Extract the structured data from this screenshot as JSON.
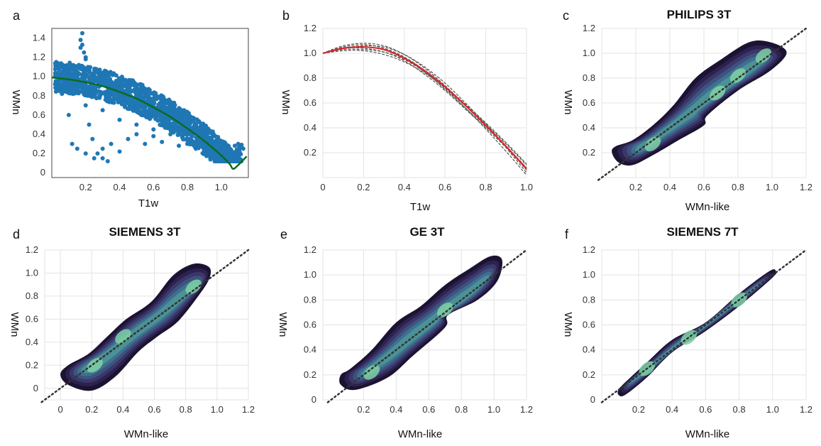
{
  "chart_data": [
    {
      "type": "scatter",
      "panel": "a",
      "title": "",
      "xlabel": "T1w",
      "ylabel": "WMn",
      "xticks": [
        "0.2",
        "0.4",
        "0.6",
        "0.8",
        "1.0"
      ],
      "yticks": [
        "0",
        "0.2",
        "0.4",
        "0.6",
        "0.8",
        "1.0",
        "1.2",
        "1.4"
      ],
      "xlim": [
        0.0,
        1.16
      ],
      "ylim": [
        -0.05,
        1.5
      ],
      "grid": false,
      "scatter_color": "#1f77b4",
      "fit_color": "#0b6b1e",
      "series": [
        {
          "type": "scatter",
          "x": [
            0.02,
            0.03,
            0.04,
            0.05,
            0.06,
            0.06,
            0.08,
            0.09,
            0.1,
            0.12,
            0.13,
            0.14,
            0.15,
            0.16,
            0.17,
            0.18,
            0.2,
            0.21,
            0.23,
            0.25,
            0.26,
            0.28,
            0.3,
            0.32,
            0.34,
            0.36,
            0.38,
            0.4,
            0.42,
            0.44,
            0.46,
            0.48,
            0.5,
            0.52,
            0.55,
            0.58,
            0.6,
            0.62,
            0.65,
            0.68,
            0.7,
            0.72,
            0.75,
            0.78,
            0.8,
            0.82,
            0.85,
            0.88,
            0.9,
            0.92,
            0.95,
            0.98,
            1.0,
            1.02,
            1.05,
            1.08,
            1.1,
            1.12,
            1.13,
            0.17,
            0.18,
            0.19,
            0.2,
            0.22,
            0.24,
            0.27,
            0.3,
            0.33,
            0.12,
            0.15,
            0.2,
            0.25,
            0.3,
            0.35,
            0.4,
            0.45,
            0.5,
            0.55,
            0.6,
            0.65,
            0.7,
            0.75,
            0.8,
            0.85,
            0.9,
            0.95,
            1.0,
            0.1,
            0.2,
            0.3,
            0.4,
            0.5,
            0.6,
            0.7,
            0.8,
            0.9
          ],
          "y": [
            0.92,
            0.85,
            0.98,
            0.9,
            0.82,
            1.0,
            0.95,
            0.88,
            1.02,
            0.97,
            0.9,
            1.05,
            0.99,
            1.12,
            1.3,
            1.45,
            1.2,
            1.08,
            1.0,
            0.95,
            1.05,
            0.92,
            0.98,
            0.9,
            0.88,
            0.85,
            0.95,
            0.82,
            0.9,
            0.8,
            0.78,
            0.85,
            0.75,
            0.72,
            0.7,
            0.65,
            0.68,
            0.6,
            0.58,
            0.55,
            0.5,
            0.52,
            0.45,
            0.42,
            0.4,
            0.35,
            0.32,
            0.28,
            0.3,
            0.25,
            0.22,
            0.2,
            0.22,
            0.2,
            0.25,
            0.28,
            0.3,
            0.27,
            0.25,
            1.38,
            1.33,
            1.25,
            1.18,
            0.5,
            0.35,
            0.2,
            0.15,
            0.12,
            0.3,
            0.25,
            0.2,
            0.15,
            0.25,
            0.3,
            0.22,
            0.35,
            0.4,
            0.3,
            0.38,
            0.32,
            0.45,
            0.28,
            0.35,
            0.25,
            0.2,
            0.18,
            0.15,
            0.6,
            0.7,
            0.65,
            0.55,
            0.5,
            0.45,
            0.4,
            0.3,
            0.2
          ]
        },
        {
          "type": "line",
          "name": "fit",
          "x": [
            0.0,
            0.1,
            0.2,
            0.3,
            0.4,
            0.5,
            0.6,
            0.7,
            0.8,
            0.9,
            1.0,
            1.05,
            1.07,
            1.1,
            1.15
          ],
          "y": [
            0.99,
            0.97,
            0.94,
            0.9,
            0.84,
            0.77,
            0.68,
            0.58,
            0.46,
            0.33,
            0.18,
            0.09,
            0.04,
            0.08,
            0.17
          ]
        }
      ]
    },
    {
      "type": "line",
      "panel": "b",
      "title": "",
      "xlabel": "T1w",
      "ylabel": "WMn",
      "xticks": [
        "0",
        "0.2",
        "0.4",
        "0.6",
        "0.8",
        "1.0"
      ],
      "yticks": [
        "0.2",
        "0.4",
        "0.6",
        "0.8",
        "1.0",
        "1.2"
      ],
      "xlim": [
        0.0,
        1.0
      ],
      "ylim": [
        0.0,
        1.2
      ],
      "grid": true,
      "mean_color": "#d62728",
      "curve_color": "#555555",
      "series": [
        {
          "name": "",
          "x": [
            0,
            0.1,
            0.2,
            0.3,
            0.4,
            0.5,
            0.6,
            0.7,
            0.8,
            0.9,
            1.0
          ],
          "y": [
            1.0,
            1.04,
            1.05,
            1.03,
            0.96,
            0.85,
            0.71,
            0.56,
            0.41,
            0.25,
            0.08
          ]
        },
        {
          "name": "",
          "x": [
            0,
            0.1,
            0.2,
            0.3,
            0.4,
            0.5,
            0.6,
            0.7,
            0.8,
            0.9,
            1.0
          ],
          "y": [
            1.0,
            1.06,
            1.08,
            1.06,
            0.99,
            0.88,
            0.74,
            0.58,
            0.42,
            0.25,
            0.06
          ]
        },
        {
          "name": "",
          "x": [
            0,
            0.1,
            0.2,
            0.3,
            0.4,
            0.5,
            0.6,
            0.7,
            0.8,
            0.9,
            1.0
          ],
          "y": [
            1.0,
            1.05,
            1.07,
            1.04,
            0.97,
            0.86,
            0.72,
            0.56,
            0.39,
            0.21,
            0.02
          ]
        },
        {
          "name": "",
          "x": [
            0,
            0.1,
            0.2,
            0.3,
            0.4,
            0.5,
            0.6,
            0.7,
            0.8,
            0.9,
            1.0
          ],
          "y": [
            1.0,
            1.03,
            1.03,
            1.01,
            0.95,
            0.85,
            0.73,
            0.59,
            0.44,
            0.28,
            0.11
          ]
        },
        {
          "name": "",
          "x": [
            0,
            0.1,
            0.2,
            0.3,
            0.4,
            0.5,
            0.6,
            0.7,
            0.8,
            0.9,
            1.0
          ],
          "y": [
            1.0,
            1.02,
            1.02,
            0.99,
            0.93,
            0.84,
            0.72,
            0.58,
            0.43,
            0.27,
            0.1
          ]
        },
        {
          "name": "",
          "x": [
            0,
            0.1,
            0.2,
            0.3,
            0.4,
            0.5,
            0.6,
            0.7,
            0.8,
            0.9,
            1.0
          ],
          "y": [
            1.0,
            1.04,
            1.06,
            1.05,
            0.99,
            0.89,
            0.76,
            0.6,
            0.43,
            0.24,
            0.04
          ]
        },
        {
          "name": "",
          "x": [
            0,
            0.1,
            0.2,
            0.3,
            0.4,
            0.5,
            0.6,
            0.7,
            0.8,
            0.9,
            1.0
          ],
          "y": [
            1.0,
            1.04,
            1.04,
            1.01,
            0.94,
            0.83,
            0.7,
            0.55,
            0.4,
            0.24,
            0.07
          ]
        },
        {
          "name": "",
          "mean": true,
          "x": [
            0,
            0.1,
            0.2,
            0.3,
            0.4,
            0.5,
            0.6,
            0.7,
            0.8,
            0.9,
            1.0
          ],
          "y": [
            1.0,
            1.04,
            1.05,
            1.03,
            0.96,
            0.86,
            0.73,
            0.58,
            0.42,
            0.25,
            0.07
          ]
        }
      ]
    },
    {
      "type": "heatmap",
      "panel": "c",
      "title": "PHILIPS 3T",
      "xlabel": "WMn-like",
      "ylabel": "WMn",
      "xticks": [
        "0.2",
        "0.4",
        "0.6",
        "0.8",
        "1.0",
        "1.2"
      ],
      "yticks": [
        "0.2",
        "0.4",
        "0.6",
        "0.8",
        "1.0",
        "1.2"
      ],
      "xlim": [
        0.0,
        1.2
      ],
      "ylim": [
        0.0,
        1.2
      ],
      "grid": true,
      "identity_line": true,
      "density_path": [
        [
          0.06,
          0.2
        ],
        [
          0.1,
          0.12
        ],
        [
          0.18,
          0.1
        ],
        [
          0.3,
          0.18
        ],
        [
          0.45,
          0.3
        ],
        [
          0.6,
          0.42
        ],
        [
          0.62,
          0.5
        ],
        [
          0.8,
          0.7
        ],
        [
          0.98,
          0.85
        ],
        [
          1.08,
          0.98
        ],
        [
          1.06,
          1.05
        ],
        [
          0.95,
          1.1
        ],
        [
          0.85,
          1.08
        ],
        [
          0.7,
          0.95
        ],
        [
          0.55,
          0.8
        ],
        [
          0.42,
          0.58
        ],
        [
          0.3,
          0.42
        ],
        [
          0.18,
          0.3
        ],
        [
          0.08,
          0.25
        ]
      ],
      "density_peaks": [
        [
          0.3,
          0.27
        ],
        [
          0.68,
          0.68
        ],
        [
          0.8,
          0.82
        ],
        [
          0.95,
          0.98
        ]
      ]
    },
    {
      "type": "heatmap",
      "panel": "d",
      "title": "SIEMENS 3T",
      "xlabel": "WMn-like",
      "ylabel": "WMn",
      "xticks": [
        "0",
        "0.2",
        "0.4",
        "0.6",
        "0.8",
        "1.0",
        "1.2"
      ],
      "yticks": [
        "0",
        "0.2",
        "0.4",
        "0.6",
        "0.8",
        "1.0",
        "1.2"
      ],
      "xlim": [
        -0.1,
        1.2
      ],
      "ylim": [
        -0.1,
        1.2
      ],
      "grid": true,
      "identity_line": true,
      "density_path": [
        [
          0.0,
          0.12
        ],
        [
          0.05,
          0.03
        ],
        [
          0.2,
          -0.02
        ],
        [
          0.35,
          0.1
        ],
        [
          0.5,
          0.32
        ],
        [
          0.62,
          0.45
        ],
        [
          0.75,
          0.58
        ],
        [
          0.88,
          0.8
        ],
        [
          0.95,
          0.95
        ],
        [
          0.95,
          1.05
        ],
        [
          0.85,
          1.08
        ],
        [
          0.72,
          0.98
        ],
        [
          0.58,
          0.75
        ],
        [
          0.42,
          0.6
        ],
        [
          0.3,
          0.45
        ],
        [
          0.18,
          0.3
        ],
        [
          0.05,
          0.2
        ]
      ],
      "density_peaks": [
        [
          0.22,
          0.2
        ],
        [
          0.4,
          0.45
        ],
        [
          0.85,
          0.88
        ]
      ]
    },
    {
      "type": "heatmap",
      "panel": "e",
      "title": "GE 3T",
      "xlabel": "WMn-like",
      "ylabel": "WMn",
      "xticks": [
        "0.2",
        "0.4",
        "0.6",
        "0.8",
        "1.0",
        "1.2"
      ],
      "yticks": [
        "0",
        "0.2",
        "0.4",
        "0.6",
        "0.8",
        "1.0",
        "1.2"
      ],
      "xlim": [
        -0.05,
        1.2
      ],
      "ylim": [
        0.0,
        1.2
      ],
      "grid": true,
      "identity_line": true,
      "density_path": [
        [
          0.06,
          0.12
        ],
        [
          0.15,
          0.08
        ],
        [
          0.35,
          0.18
        ],
        [
          0.5,
          0.35
        ],
        [
          0.7,
          0.58
        ],
        [
          0.72,
          0.68
        ],
        [
          0.9,
          0.8
        ],
        [
          1.02,
          0.95
        ],
        [
          1.05,
          1.12
        ],
        [
          0.98,
          1.15
        ],
        [
          0.85,
          1.05
        ],
        [
          0.7,
          0.92
        ],
        [
          0.55,
          0.75
        ],
        [
          0.4,
          0.62
        ],
        [
          0.25,
          0.4
        ],
        [
          0.12,
          0.25
        ],
        [
          0.06,
          0.2
        ]
      ],
      "density_peaks": [
        [
          0.25,
          0.22
        ],
        [
          0.7,
          0.72
        ]
      ]
    },
    {
      "type": "heatmap",
      "panel": "f",
      "title": "SIEMENS 7T",
      "xlabel": "WMn-like",
      "ylabel": "WMn",
      "xticks": [
        "0.2",
        "0.4",
        "0.6",
        "0.8",
        "1.0",
        "1.2"
      ],
      "yticks": [
        "0",
        "0.2",
        "0.4",
        "0.6",
        "0.8",
        "1.0",
        "1.2"
      ],
      "xlim": [
        -0.02,
        1.2
      ],
      "ylim": [
        0.0,
        1.2
      ],
      "grid": true,
      "identity_line": true,
      "density_path": [
        [
          0.08,
          0.04
        ],
        [
          0.12,
          0.04
        ],
        [
          0.25,
          0.18
        ],
        [
          0.4,
          0.38
        ],
        [
          0.6,
          0.55
        ],
        [
          0.8,
          0.75
        ],
        [
          1.0,
          0.98
        ],
        [
          1.02,
          1.03
        ],
        [
          0.98,
          1.03
        ],
        [
          0.8,
          0.85
        ],
        [
          0.6,
          0.62
        ],
        [
          0.4,
          0.48
        ],
        [
          0.25,
          0.3
        ],
        [
          0.12,
          0.14
        ],
        [
          0.08,
          0.08
        ]
      ],
      "density_peaks": [
        [
          0.25,
          0.25
        ],
        [
          0.5,
          0.5
        ],
        [
          0.8,
          0.8
        ]
      ]
    }
  ],
  "panel_letters": {
    "a": "a",
    "b": "b",
    "c": "c",
    "d": "d",
    "e": "e",
    "f": "f"
  }
}
